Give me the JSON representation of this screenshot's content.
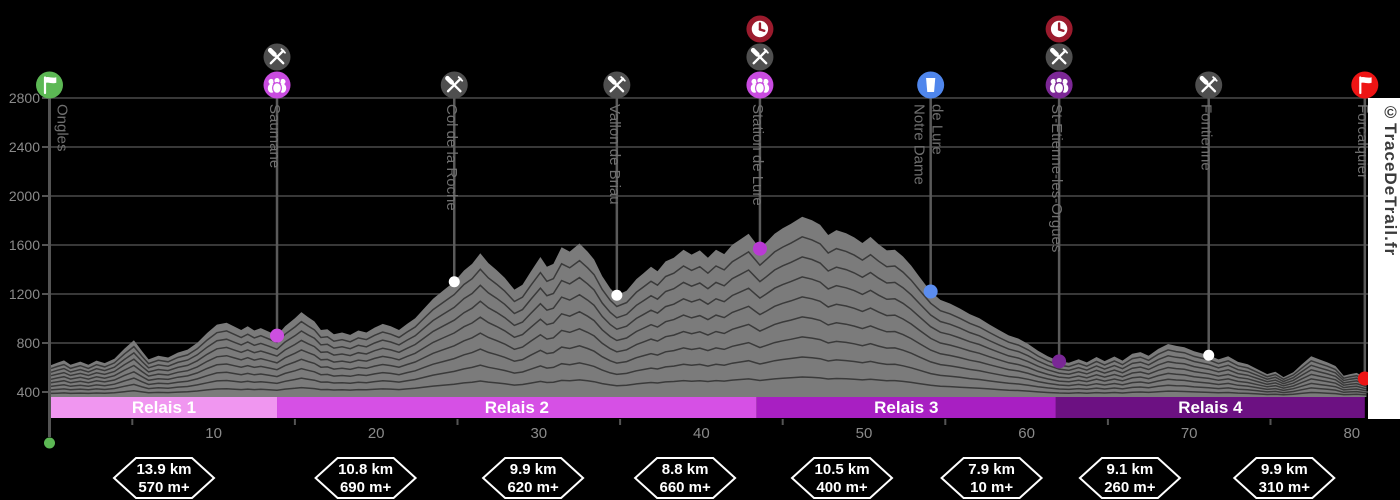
{
  "watermark": "©TraceDeTrail.fr",
  "colors": {
    "background": "#000000",
    "profile_fill": "#7b7b7b",
    "ridge_line": "#3a3a3a",
    "gridline": "#4a4a4a",
    "axis": "#545454",
    "marker_line": "#5a5a5a",
    "waypoint_label": "#6f6f6f",
    "tick_label": "#8a8a8a",
    "badge_border": "#ffffff",
    "relay_text": "#ffffff",
    "icon_restaurant_bg": "#4f4f4f",
    "icon_time_limit_bg": "#9b1b2d",
    "icon_relay_pink_bg": "#c94be0",
    "icon_relay_purple_bg": "#7c2796",
    "icon_water_bg": "#4f86ec",
    "icon_start_bg": "#5cb854",
    "icon_finish_bg": "#ee1414"
  },
  "chart_data": {
    "type": "area",
    "x_unit": "km",
    "y_unit": "m",
    "xlim": [
      0,
      81.5
    ],
    "ylim": [
      400,
      2800
    ],
    "x_ticks": [
      10,
      20,
      30,
      40,
      50,
      60,
      70,
      80
    ],
    "x_minor_ticks": [
      5,
      15,
      25,
      35,
      45,
      55,
      65,
      75
    ],
    "y_ticks": [
      400,
      800,
      1200,
      1600,
      2000,
      2400,
      2800
    ],
    "grid": true,
    "profile": [
      [
        0,
        620
      ],
      [
        0.4,
        640
      ],
      [
        0.8,
        658
      ],
      [
        1.2,
        622
      ],
      [
        1.8,
        648
      ],
      [
        2.3,
        622
      ],
      [
        2.8,
        656
      ],
      [
        3.3,
        636
      ],
      [
        3.9,
        672
      ],
      [
        4.5,
        752
      ],
      [
        5.1,
        822
      ],
      [
        5.6,
        732
      ],
      [
        6,
        666
      ],
      [
        6.6,
        696
      ],
      [
        7.2,
        682
      ],
      [
        7.8,
        722
      ],
      [
        8.4,
        746
      ],
      [
        9,
        802
      ],
      [
        9.6,
        882
      ],
      [
        10.2,
        950
      ],
      [
        10.8,
        966
      ],
      [
        11.3,
        932
      ],
      [
        11.7,
        906
      ],
      [
        12.1,
        936
      ],
      [
        12.5,
        902
      ],
      [
        12.9,
        922
      ],
      [
        13.4,
        892
      ],
      [
        13.9,
        860
      ],
      [
        14.4,
        936
      ],
      [
        15,
        1002
      ],
      [
        15.4,
        1052
      ],
      [
        15.8,
        1012
      ],
      [
        16.2,
        976
      ],
      [
        16.6,
        906
      ],
      [
        17,
        912
      ],
      [
        17.4,
        872
      ],
      [
        17.9,
        886
      ],
      [
        18.4,
        866
      ],
      [
        18.9,
        902
      ],
      [
        19.4,
        886
      ],
      [
        19.9,
        926
      ],
      [
        20.4,
        956
      ],
      [
        20.9,
        936
      ],
      [
        21.4,
        906
      ],
      [
        21.9,
        956
      ],
      [
        22.4,
        1002
      ],
      [
        22.9,
        1076
      ],
      [
        23.5,
        1162
      ],
      [
        24.1,
        1226
      ],
      [
        24.8,
        1300
      ],
      [
        25.4,
        1392
      ],
      [
        25.9,
        1446
      ],
      [
        26.4,
        1532
      ],
      [
        26.9,
        1452
      ],
      [
        27.4,
        1396
      ],
      [
        27.9,
        1332
      ],
      [
        28.5,
        1236
      ],
      [
        29,
        1276
      ],
      [
        29.5,
        1382
      ],
      [
        30.1,
        1502
      ],
      [
        30.5,
        1422
      ],
      [
        30.9,
        1446
      ],
      [
        31.4,
        1582
      ],
      [
        31.9,
        1546
      ],
      [
        32.5,
        1612
      ],
      [
        33,
        1546
      ],
      [
        33.4,
        1482
      ],
      [
        33.9,
        1346
      ],
      [
        34.4,
        1246
      ],
      [
        34.8,
        1190
      ],
      [
        35.4,
        1226
      ],
      [
        36,
        1322
      ],
      [
        36.4,
        1366
      ],
      [
        36.9,
        1422
      ],
      [
        37.3,
        1386
      ],
      [
        37.8,
        1466
      ],
      [
        38.3,
        1496
      ],
      [
        38.9,
        1562
      ],
      [
        39.4,
        1522
      ],
      [
        39.9,
        1556
      ],
      [
        40.4,
        1496
      ],
      [
        40.9,
        1562
      ],
      [
        41.4,
        1526
      ],
      [
        41.9,
        1602
      ],
      [
        42.4,
        1646
      ],
      [
        42.9,
        1692
      ],
      [
        43.3,
        1622
      ],
      [
        43.6,
        1570
      ],
      [
        44,
        1622
      ],
      [
        44.5,
        1692
      ],
      [
        45,
        1736
      ],
      [
        45.5,
        1772
      ],
      [
        46.2,
        1830
      ],
      [
        46.8,
        1802
      ],
      [
        47.3,
        1766
      ],
      [
        47.8,
        1682
      ],
      [
        48.3,
        1722
      ],
      [
        48.9,
        1696
      ],
      [
        49.4,
        1662
      ],
      [
        49.9,
        1616
      ],
      [
        50.4,
        1666
      ],
      [
        50.9,
        1606
      ],
      [
        51.4,
        1556
      ],
      [
        51.9,
        1562
      ],
      [
        52.4,
        1506
      ],
      [
        52.9,
        1432
      ],
      [
        53.4,
        1342
      ],
      [
        54.1,
        1220
      ],
      [
        54.7,
        1152
      ],
      [
        55.3,
        1122
      ],
      [
        55.9,
        1082
      ],
      [
        56.5,
        1036
      ],
      [
        57.1,
        1002
      ],
      [
        57.7,
        952
      ],
      [
        58.3,
        906
      ],
      [
        58.9,
        862
      ],
      [
        59.5,
        836
      ],
      [
        60.1,
        792
      ],
      [
        60.7,
        736
      ],
      [
        61.3,
        692
      ],
      [
        62,
        652
      ],
      [
        62.6,
        638
      ],
      [
        63.2,
        668
      ],
      [
        63.7,
        642
      ],
      [
        64.3,
        686
      ],
      [
        64.8,
        652
      ],
      [
        65.4,
        690
      ],
      [
        65.9,
        656
      ],
      [
        66.5,
        712
      ],
      [
        67,
        726
      ],
      [
        67.5,
        696
      ],
      [
        68.1,
        752
      ],
      [
        68.7,
        792
      ],
      [
        69.2,
        776
      ],
      [
        69.7,
        766
      ],
      [
        70.3,
        732
      ],
      [
        71.2,
        700
      ],
      [
        71.8,
        666
      ],
      [
        72.4,
        692
      ],
      [
        73,
        646
      ],
      [
        73.6,
        626
      ],
      [
        74.2,
        586
      ],
      [
        74.8,
        546
      ],
      [
        75.3,
        566
      ],
      [
        75.8,
        522
      ],
      [
        76.4,
        562
      ],
      [
        76.9,
        622
      ],
      [
        77.5,
        692
      ],
      [
        78,
        666
      ],
      [
        78.5,
        642
      ],
      [
        79,
        612
      ],
      [
        79.5,
        532
      ],
      [
        79.9,
        546
      ],
      [
        80.3,
        556
      ],
      [
        80.9,
        510
      ]
    ],
    "ridge_line_count": 8,
    "waypoints": [
      {
        "name": "Ongles",
        "km": 0,
        "elevation_m": 620,
        "start": true,
        "icons": [
          "start-flag"
        ],
        "dot_color": "#5cb854",
        "label_lines": [
          "Ongles"
        ]
      },
      {
        "name": "Saumane",
        "km": 13.9,
        "elevation_m": 860,
        "icons": [
          "restaurant",
          "relay-exchange-pink"
        ],
        "dot_color": "#cc4fe0",
        "dot_r": 7,
        "label_lines": [
          "Saumane"
        ]
      },
      {
        "name": "Col de la Roche",
        "km": 24.8,
        "elevation_m": 1300,
        "icons": [
          "restaurant"
        ],
        "dot_color": "#ffffff",
        "dot_r": 5.5,
        "label_lines": [
          "Col de la Roche"
        ]
      },
      {
        "name": "Vallon de Briau",
        "km": 34.8,
        "elevation_m": 1190,
        "icons": [
          "restaurant"
        ],
        "dot_color": "#ffffff",
        "dot_r": 5.5,
        "label_lines": [
          "Vallon de Briau"
        ]
      },
      {
        "name": "Station de Lure",
        "km": 43.6,
        "elevation_m": 1570,
        "icons": [
          "time-limit",
          "restaurant",
          "relay-exchange-pink"
        ],
        "dot_color": "#b93ad4",
        "dot_r": 7,
        "label_lines": [
          "Station de Lure"
        ]
      },
      {
        "name": "Notre Dame de Lure",
        "km": 54.1,
        "elevation_m": 1220,
        "icons": [
          "water"
        ],
        "dot_color": "#5b8df0",
        "dot_r": 7,
        "label_lines": [
          "Notre Dame",
          "de Lure"
        ]
      },
      {
        "name": "St-Etienne-les-Orgues",
        "km": 62,
        "elevation_m": 650,
        "icons": [
          "time-limit",
          "restaurant",
          "relay-exchange-purple"
        ],
        "dot_color": "#7a2796",
        "dot_r": 7,
        "label_lines": [
          "St-Etienne-les-Orgues"
        ]
      },
      {
        "name": "Fontienne",
        "km": 71.2,
        "elevation_m": 700,
        "icons": [
          "restaurant"
        ],
        "dot_color": "#ffffff",
        "dot_r": 5.5,
        "label_lines": [
          "Fontienne"
        ]
      },
      {
        "name": "Forcalquier",
        "km": 80.8,
        "elevation_m": 510,
        "icons": [
          "finish-flag"
        ],
        "dot_color": "#ee1414",
        "dot_r": 7,
        "label_lines": [
          "Forcalquier"
        ]
      }
    ],
    "relays": [
      {
        "label": "Relais 1",
        "from_km": 0,
        "to_km": 13.9,
        "color": "#f096f0"
      },
      {
        "label": "Relais 2",
        "from_km": 13.9,
        "to_km": 43.4,
        "color": "#d650e5"
      },
      {
        "label": "Relais 3",
        "from_km": 43.4,
        "to_km": 61.8,
        "color": "#a81fc2"
      },
      {
        "label": "Relais 4",
        "from_km": 61.8,
        "to_km": 80.8,
        "color": "#6c1182"
      }
    ],
    "segments": [
      {
        "distance": "13.9 km",
        "gain": "570 m+",
        "mid_km": 6.95
      },
      {
        "distance": "10.8 km",
        "gain": "690 m+",
        "mid_km": 19.35
      },
      {
        "distance": "9.9 km",
        "gain": "620 m+",
        "mid_km": 29.65
      },
      {
        "distance": "8.8 km",
        "gain": "660 m+",
        "mid_km": 39
      },
      {
        "distance": "10.5 km",
        "gain": "400 m+",
        "mid_km": 48.65
      },
      {
        "distance": "7.9 km",
        "gain": "10 m+",
        "mid_km": 57.85
      },
      {
        "distance": "9.1 km",
        "gain": "260 m+",
        "mid_km": 66.35
      },
      {
        "distance": "9.9 km",
        "gain": "310 m+",
        "mid_km": 75.85
      }
    ]
  }
}
